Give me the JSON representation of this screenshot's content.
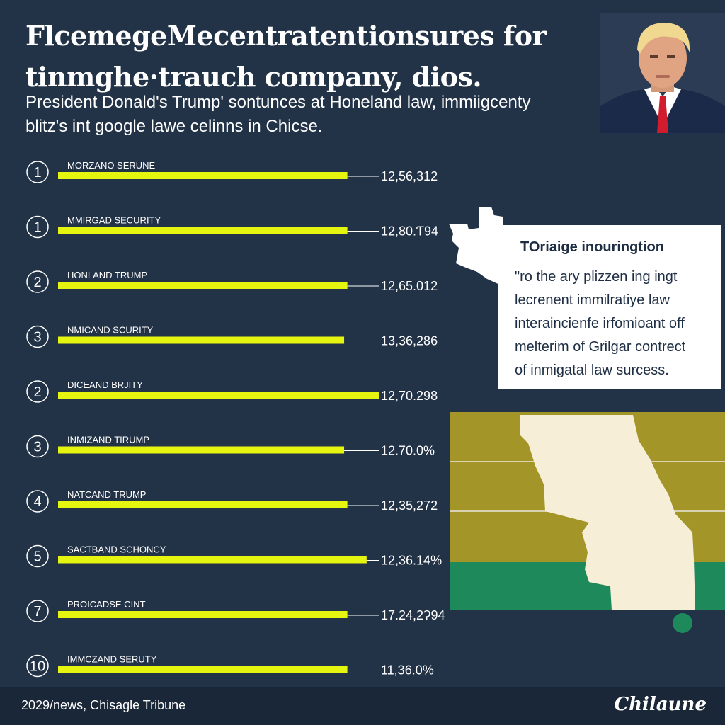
{
  "header": {
    "title_line1": "FlcemegeMecentratentionsures for",
    "title_line2": "tinmghe·trauch company, dios.",
    "subtitle_line1": "President Donald's Trump' sontunces at Honeland law,  immiigcenty",
    "subtitle_line2": "blitz's int google lawe celinns in Chicse."
  },
  "chart_data": {
    "type": "bar",
    "orientation": "horizontal",
    "title": "FlcemegeMecentratentionsures for tinmghe·trauch company, dios.",
    "ranks": [
      "1",
      "1",
      "2",
      "3",
      "2",
      "3",
      "4",
      "5",
      "7",
      "10"
    ],
    "categories": [
      "MORZANO SERUNE",
      "MMIRGAD SECURITY",
      "HONLAND TRUMP",
      "NMICAND SCURITY",
      "DICEAND BRJITY",
      "INMIZAND TIRUMP",
      "NATCAND TRUMP",
      "SACTBAND SCHONCY",
      "PROICADSE CINT",
      "IMMCZAND SERUTY"
    ],
    "values": [
      0.9,
      0.9,
      0.9,
      0.89,
      1.0,
      0.89,
      0.9,
      0.96,
      0.9,
      0.9
    ],
    "value_labels": [
      "12,56,312",
      "12,80.Ƭ94",
      "12,65.012",
      "13,36,286",
      "12,70.298",
      "12.70.0%",
      "12,35,272",
      "12,36.14%",
      "17.24,2Ɂ94",
      "11,36.0%"
    ],
    "xlim": [
      0,
      1
    ],
    "bar_color": "#e6f50f",
    "grid": false
  },
  "infobox": {
    "title": "TOriaige inouringtion",
    "lines": [
      "\"ro the ary plizzen ing ingt",
      "lecrenent immilratiye law",
      "interaincienfe irfomioant off",
      "melterim of Grilgar contrect",
      "of inmigatal law surcess."
    ]
  },
  "map": {
    "colors": {
      "olive": "#a39527",
      "cream": "#f7eed8",
      "green": "#1e8a5c"
    }
  },
  "footer": {
    "source": "2029/news, Chisagle Tribune",
    "logo": "Chilaune"
  },
  "colors": {
    "background": "#223247",
    "footer_bg": "#1a2738",
    "bar": "#e6f50f",
    "text": "#ffffff"
  }
}
